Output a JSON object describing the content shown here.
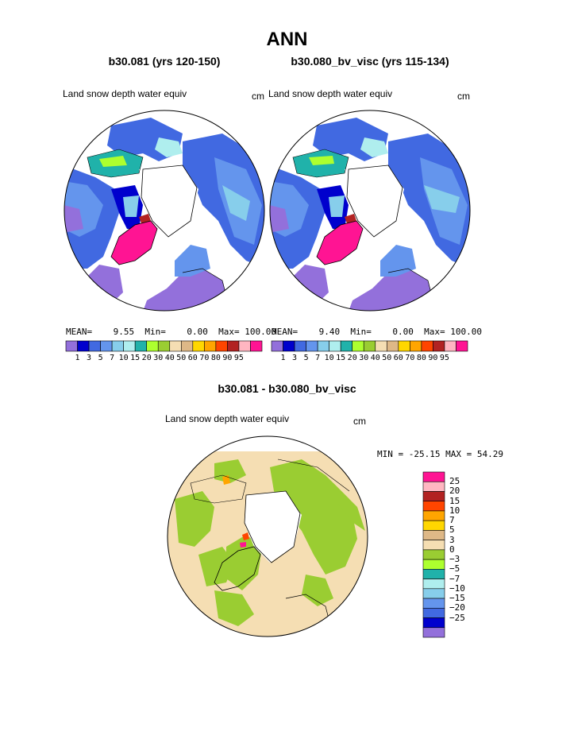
{
  "title": "ANN",
  "panels": [
    {
      "case": "b30.081 (yrs 120-150)",
      "variable": "Land snow depth water equiv",
      "units": "cm",
      "mean_label": "MEAN=",
      "mean": "9.55",
      "min_label": "Min=",
      "min": "0.00",
      "max_label": "Max=",
      "max": "100.00"
    },
    {
      "case": "b30.080_bv_visc (yrs 115-134)",
      "variable": "Land snow depth water equiv",
      "units": "cm",
      "mean_label": "MEAN=",
      "mean": "9.40",
      "min_label": "Min=",
      "min": "0.00",
      "max_label": "Max=",
      "max": "100.00"
    }
  ],
  "difference": {
    "title": "b30.081 - b30.080_bv_visc",
    "variable": "Land snow depth water equiv",
    "units": "cm",
    "minmax_text": "MIN = -25.15 MAX =  54.29"
  },
  "colorbar": {
    "colors": [
      "#9370db",
      "#0000cd",
      "#4169e1",
      "#6495ed",
      "#87ceeb",
      "#afeeee",
      "#20b2aa",
      "#adff2f",
      "#9acd32",
      "#f5deb3",
      "#deb887",
      "#ffd700",
      "#ffa500",
      "#ff4500",
      "#b22222",
      "#ffb6c1",
      "#ff1493"
    ],
    "ticks": [
      "1",
      "3",
      "5",
      "7",
      "10",
      "15",
      "20",
      "30",
      "40",
      "50",
      "60",
      "70",
      "80",
      "90",
      "95"
    ]
  },
  "diff_colorbar": {
    "colors": [
      "#ff1493",
      "#ffb6c1",
      "#b22222",
      "#ff4500",
      "#ffa500",
      "#ffd700",
      "#deb887",
      "#f5deb3",
      "#9acd32",
      "#adff2f",
      "#20b2aa",
      "#afeeee",
      "#87ceeb",
      "#6495ed",
      "#4169e1",
      "#0000cd",
      "#9370db"
    ],
    "ticks": [
      "25",
      "20",
      "15",
      "10",
      "7",
      "5",
      "3",
      "0",
      "−3",
      "−5",
      "−7",
      "−10",
      "−15",
      "−20",
      "−25"
    ]
  }
}
